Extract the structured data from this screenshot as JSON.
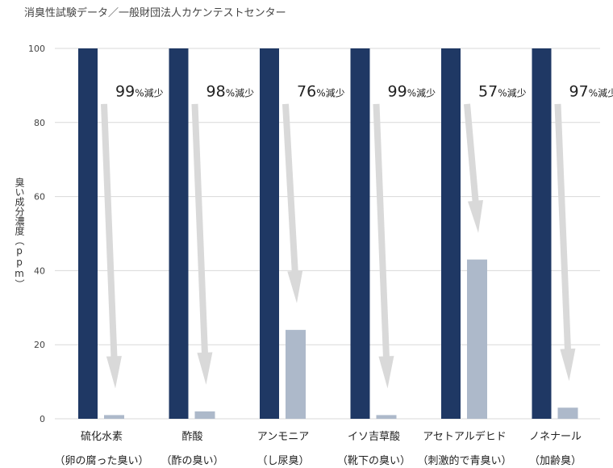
{
  "source_note": "消臭性試験データ／一般財団法人カケンテストセンター",
  "chart_data": {
    "type": "bar",
    "ylabel": "臭い成分濃度（ppm）",
    "ylim": [
      0,
      100
    ],
    "yticks": [
      0,
      20,
      40,
      60,
      80,
      100
    ],
    "grid": true,
    "categories": [
      "硫化水素",
      "酢酸",
      "アンモニア",
      "イソ吉草酸",
      "アセトアルデヒド",
      "ノネナール"
    ],
    "sublabels": [
      "（卵の腐った臭い）",
      "（酢の臭い）",
      "（し尿臭）",
      "（靴下の臭い）",
      "（刺激的で青臭い）",
      "（加齢臭）"
    ],
    "series": [
      {
        "values": [
          100,
          100,
          100,
          100,
          100,
          100
        ]
      },
      {
        "values": [
          1,
          2,
          24,
          1,
          43,
          3
        ]
      }
    ],
    "reductions": [
      "99",
      "98",
      "76",
      "99",
      "57",
      "97"
    ],
    "reduction_suffix": "%減少",
    "colors": {
      "before": "#1f3864",
      "after": "#adb9ca",
      "arrow": "#d9d9d9",
      "grid": "#d9d9d9"
    }
  }
}
